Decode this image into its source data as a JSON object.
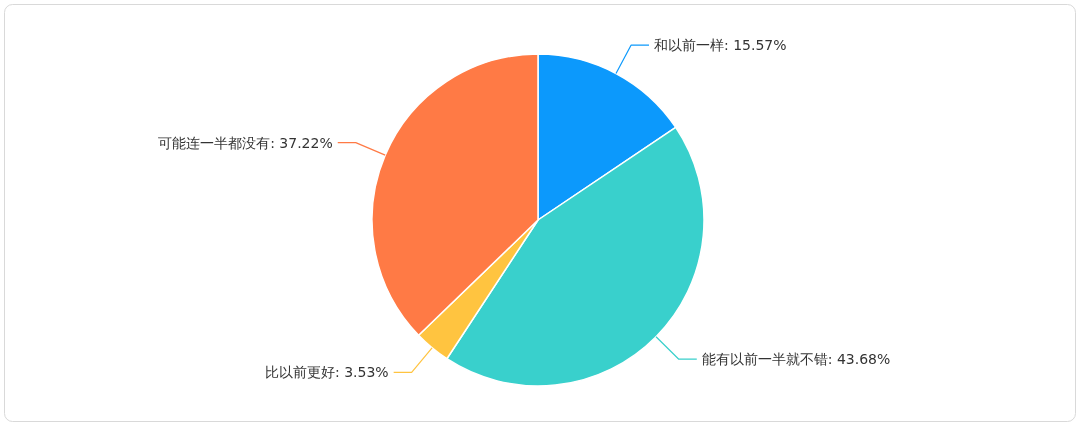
{
  "chart_data": {
    "type": "pie",
    "categories": [
      "和以前一样",
      "能有以前一半就不错",
      "比以前更好",
      "可能连一半都没有"
    ],
    "values": [
      15.57,
      43.68,
      3.53,
      37.22
    ],
    "value_labels": [
      "15.57%",
      "43.68%",
      "3.53%",
      "37.22%"
    ],
    "colors": [
      "#0c99fc",
      "#39d0cc",
      "#ffc440",
      "#ff7a45"
    ]
  }
}
